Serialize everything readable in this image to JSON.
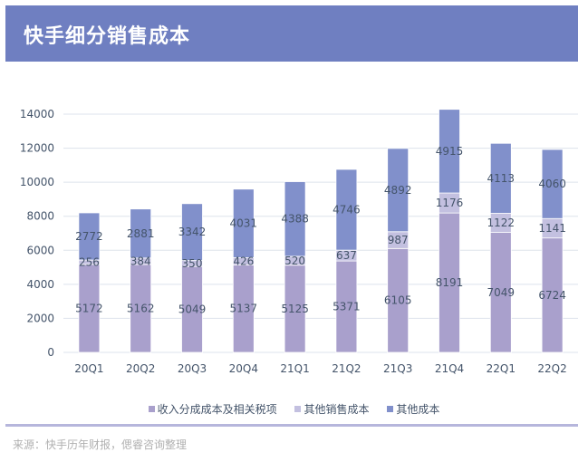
{
  "header": {
    "title": "快手细分销售成本"
  },
  "colors": {
    "header_bg": "#6f7fc1",
    "series": [
      "#a9a0cc",
      "#c3c0e0",
      "#8190cb"
    ],
    "grid": "#dde3ec",
    "axis_text": "#44546a",
    "label_text": "#44546a"
  },
  "chart_data": {
    "type": "bar",
    "stacked": true,
    "title": "快手细分销售成本",
    "xlabel": "",
    "ylabel": "",
    "categories": [
      "20Q1",
      "20Q2",
      "20Q3",
      "20Q4",
      "21Q1",
      "21Q2",
      "21Q3",
      "21Q4",
      "22Q1",
      "22Q2"
    ],
    "series": [
      {
        "name": "收入分成成本及相关税项",
        "values": [
          5172,
          5162,
          5049,
          5137,
          5125,
          5371,
          6105,
          8191,
          7049,
          6724
        ]
      },
      {
        "name": "其他销售成本",
        "values": [
          256,
          384,
          350,
          426,
          520,
          637,
          987,
          1176,
          1122,
          1141
        ]
      },
      {
        "name": "其他成本",
        "values": [
          2772,
          2881,
          3342,
          4031,
          4388,
          4746,
          4892,
          4915,
          4113,
          4060
        ]
      }
    ],
    "ylim": [
      0,
      14000
    ],
    "yticks": [
      0,
      2000,
      4000,
      6000,
      8000,
      10000,
      12000,
      14000
    ],
    "grid": true,
    "legend_position": "bottom",
    "data_labels": true
  },
  "source": "来源：快手历年财报，偲睿咨询整理"
}
